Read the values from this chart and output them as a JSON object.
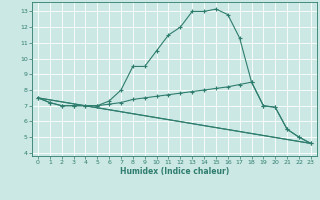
{
  "xlabel": "Humidex (Indice chaleur)",
  "background_color": "#cce8e4",
  "line_color": "#2e7d6e",
  "grid_color": "#ffffff",
  "xlim": [
    -0.5,
    23.5
  ],
  "ylim": [
    3.8,
    13.6
  ],
  "xticks": [
    0,
    1,
    2,
    3,
    4,
    5,
    6,
    7,
    8,
    9,
    10,
    11,
    12,
    13,
    14,
    15,
    16,
    17,
    18,
    19,
    20,
    21,
    22,
    23
  ],
  "yticks": [
    4,
    5,
    6,
    7,
    8,
    9,
    10,
    11,
    12,
    13
  ],
  "line1_x": [
    0,
    1,
    2,
    3,
    4,
    5,
    6,
    7,
    8,
    9,
    10,
    11,
    12,
    13,
    14,
    15,
    16,
    17,
    18,
    19,
    20,
    21,
    22,
    23
  ],
  "line1_y": [
    7.5,
    7.2,
    7.0,
    7.0,
    7.0,
    7.0,
    7.3,
    8.0,
    9.5,
    9.5,
    10.5,
    11.5,
    12.0,
    13.0,
    13.0,
    13.15,
    12.8,
    11.3,
    8.5,
    7.0,
    6.9,
    5.5,
    5.0,
    4.6
  ],
  "line2_x": [
    0,
    1,
    2,
    3,
    4,
    5,
    6,
    7,
    8,
    9,
    10,
    11,
    12,
    13,
    14,
    15,
    16,
    17,
    18,
    19,
    20,
    21,
    22,
    23
  ],
  "line2_y": [
    7.5,
    7.2,
    7.0,
    7.0,
    7.0,
    7.0,
    7.1,
    7.2,
    7.4,
    7.5,
    7.6,
    7.7,
    7.8,
    7.9,
    8.0,
    8.1,
    8.2,
    8.35,
    8.5,
    7.0,
    6.9,
    5.5,
    5.0,
    4.6
  ],
  "line3_x": [
    0,
    23
  ],
  "line3_y": [
    7.5,
    4.6
  ],
  "line4_x": [
    0,
    23
  ],
  "line4_y": [
    7.5,
    4.6
  ]
}
